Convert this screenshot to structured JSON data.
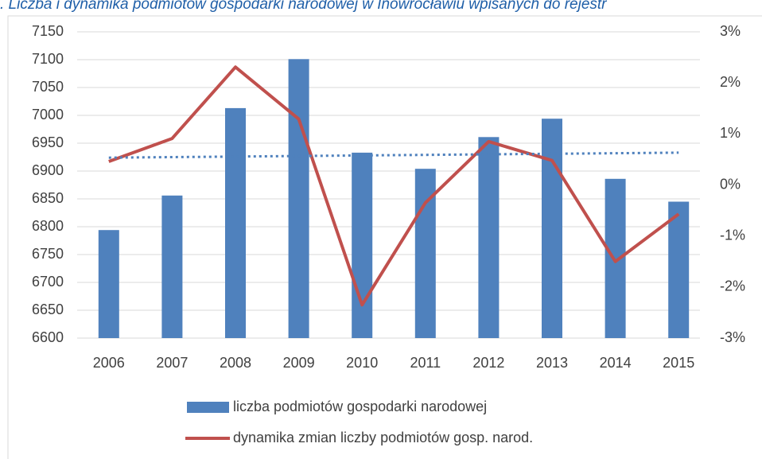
{
  "chart_data": {
    "type": "bar-line",
    "title": ". Liczba i dynamika podmiotów gospodarki narodowej w Inowrocławiu wpisanych do rejestr",
    "categories": [
      "2006",
      "2007",
      "2008",
      "2009",
      "2010",
      "2011",
      "2012",
      "2013",
      "2014",
      "2015"
    ],
    "series": [
      {
        "name": "liczba podmiotów gospodarki narodowej",
        "type": "bar",
        "color": "#4f81bd",
        "values": [
          6794,
          6856,
          7013,
          7101,
          6933,
          6904,
          6961,
          6994,
          6886,
          6845
        ]
      },
      {
        "name": "dynamika zmian liczby podmiotów gosp. narod.",
        "type": "line",
        "axis": "y2",
        "color": "#c0504d",
        "values": [
          0.46,
          0.91,
          2.31,
          1.29,
          -2.35,
          -0.35,
          0.85,
          0.48,
          -1.5,
          -0.57
        ]
      }
    ],
    "trendline": {
      "color": "#4f81bd",
      "values": [
        6924,
        6933
      ]
    },
    "ylim": [
      6600,
      7150
    ],
    "yticks": [
      6600,
      6650,
      6700,
      6750,
      6800,
      6850,
      6900,
      6950,
      7000,
      7050,
      7100,
      7150
    ],
    "y2lim": [
      -3,
      3
    ],
    "y2ticks": [
      {
        "value": -3,
        "label": "-3%"
      },
      {
        "value": -2,
        "label": "-2%"
      },
      {
        "value": -1,
        "label": "-1%"
      },
      {
        "value": 0,
        "label": "0%"
      },
      {
        "value": 1,
        "label": "1%"
      },
      {
        "value": 2,
        "label": "2%"
      },
      {
        "value": 3,
        "label": "3%"
      }
    ],
    "grid": true,
    "legend": "bottom"
  }
}
